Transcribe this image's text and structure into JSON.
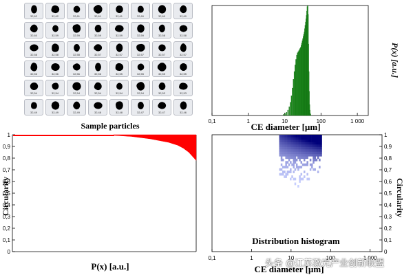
{
  "particles": {
    "caption": "Sample particles",
    "labels": [
      [
        "32,62",
        "32,62",
        "32,61",
        "32,61",
        "32,61",
        "32,60",
        "32,60",
        "32,60"
      ],
      [
        "32,60",
        "32,59",
        "32,59",
        "32,59",
        "32,59",
        "32,59",
        "32,58",
        "32,58"
      ],
      [
        "32,58",
        "32,58",
        "32,58",
        "32,57",
        "32,57",
        "32,57",
        "32,57",
        "32,57"
      ],
      [
        "32,56",
        "32,56",
        "32,56",
        "32,56",
        "32,55",
        "32,55",
        "32,55",
        "32,55"
      ],
      [
        "32,54",
        "32,54",
        "32,54",
        "32,54",
        "32,54",
        "32,54",
        "32,53",
        "32,53"
      ],
      [
        "32,49",
        "32,49",
        "32,49",
        "32,48",
        "32,48",
        "32,47",
        "32,47",
        "32,46"
      ]
    ]
  },
  "chart_data": [
    {
      "type": "bar",
      "panel": "top-right",
      "xlabel": "CE diameter [µm]",
      "ylabel": "P(x) [a.u.]",
      "xscale": "log",
      "xlim": [
        0.1,
        2000
      ],
      "xticks": [
        "0,1",
        "1",
        "10",
        "100",
        "1 000"
      ],
      "color": "#1e8a1e",
      "x": [
        9,
        10,
        11,
        12,
        13,
        14,
        15,
        16,
        17,
        18,
        19,
        20,
        21,
        22,
        23,
        24,
        25,
        26,
        27,
        28,
        29,
        30,
        31,
        32,
        33,
        34,
        35,
        36,
        37,
        38,
        39,
        40,
        41,
        42,
        43,
        44,
        45,
        46,
        47,
        48,
        49,
        50,
        51
      ],
      "values": [
        0.01,
        0.02,
        0.03,
        0.05,
        0.08,
        0.12,
        0.18,
        0.25,
        0.33,
        0.4,
        0.46,
        0.51,
        0.55,
        0.57,
        0.58,
        0.59,
        0.6,
        0.61,
        0.62,
        0.64,
        0.66,
        0.68,
        0.7,
        0.72,
        0.74,
        0.76,
        0.79,
        0.82,
        0.85,
        0.88,
        0.91,
        0.95,
        0.99,
        1.0,
        0.92,
        0.65,
        0.4,
        0.22,
        0.1,
        0.05,
        0.02,
        0.01,
        0.0
      ]
    },
    {
      "type": "area",
      "panel": "bottom-left",
      "xlabel": "P(x) [a.u.]",
      "ylabel": "Circularity",
      "ylim": [
        0,
        1
      ],
      "yticks": [
        "0",
        "0,1",
        "0,2",
        "0,3",
        "0,4",
        "0,5",
        "0,6",
        "0,7",
        "0,8",
        "0,9",
        "1"
      ],
      "color": "#ff0000",
      "x": [
        0.55,
        0.6,
        0.65,
        0.7,
        0.75,
        0.8,
        0.85,
        0.9,
        0.93,
        0.96,
        1.0
      ],
      "values": [
        0.995,
        0.99,
        0.985,
        0.975,
        0.965,
        0.95,
        0.935,
        0.91,
        0.885,
        0.85,
        0.78
      ]
    },
    {
      "type": "heatmap",
      "panel": "bottom-right",
      "title": "Distribution histogram",
      "xlabel": "CE diameter [µm]",
      "ylabel": "Circularity",
      "xscale": "log",
      "xlim": [
        0.1,
        2000
      ],
      "ylim": [
        0,
        1
      ],
      "xticks": [
        "0,1",
        "1",
        "10",
        "100",
        "1 000"
      ],
      "yticks": [
        "0",
        "0,1",
        "0,2",
        "0,3",
        "0,4",
        "0,5",
        "0,6",
        "0,7",
        "0,8",
        "0,9",
        "1"
      ],
      "color_low": "#c8d0ff",
      "color_high": "#00007a",
      "x_range": [
        5,
        60
      ],
      "y_range": [
        0.55,
        1.0
      ]
    }
  ],
  "watermark": "头条 @江苏激光产业创新联盟"
}
